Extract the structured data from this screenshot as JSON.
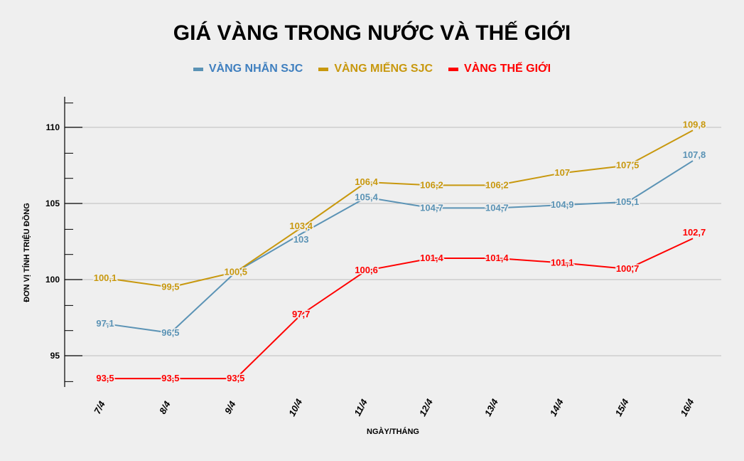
{
  "chart_data": {
    "type": "line",
    "title": "GIÁ VÀNG TRONG NƯỚC VÀ THẾ GIỚI",
    "xlabel": "NGÀY/THÁNG",
    "ylabel": "ĐƠN VỊ TÍNH TRIỆU ĐỒNG",
    "categories": [
      "7/4",
      "8/4",
      "9/4",
      "10/4",
      "11/4",
      "12/4",
      "13/4",
      "14/4",
      "15/4",
      "16/4"
    ],
    "yticks": [
      95,
      100,
      105,
      110
    ],
    "ylim": [
      92.5,
      112
    ],
    "grid": true,
    "legend_position": "top",
    "series": [
      {
        "name": "VÀNG NHẪN SJC",
        "color": "#5b93b5",
        "values": [
          97.1,
          96.5,
          100.5,
          103,
          105.4,
          104.7,
          104.7,
          104.9,
          105.1,
          107.8
        ],
        "labels": [
          "97,1",
          "96,5",
          "",
          "103",
          "105,4",
          "104,7",
          "104,7",
          "104,9",
          "105,1",
          "107,8"
        ]
      },
      {
        "name": "VÀNG MIẾNG SJC",
        "color": "#c8980e",
        "values": [
          100.1,
          99.5,
          100.5,
          103.4,
          106.4,
          106.2,
          106.2,
          107,
          107.5,
          109.8
        ],
        "labels": [
          "100,1",
          "99,5",
          "100,5",
          "103,4",
          "106,4",
          "106,2",
          "106,2",
          "107",
          "107,5",
          "109,8"
        ]
      },
      {
        "name": "VÀNG THẾ GIỚI",
        "color": "#ff0000",
        "values": [
          93.5,
          93.5,
          93.5,
          97.7,
          100.6,
          101.4,
          101.4,
          101.1,
          100.7,
          102.7
        ],
        "labels": [
          "93,5",
          "93,5",
          "93,5",
          "97,7",
          "100,6",
          "101,4",
          "101,4",
          "101,1",
          "100,7",
          "102,7"
        ]
      }
    ]
  }
}
